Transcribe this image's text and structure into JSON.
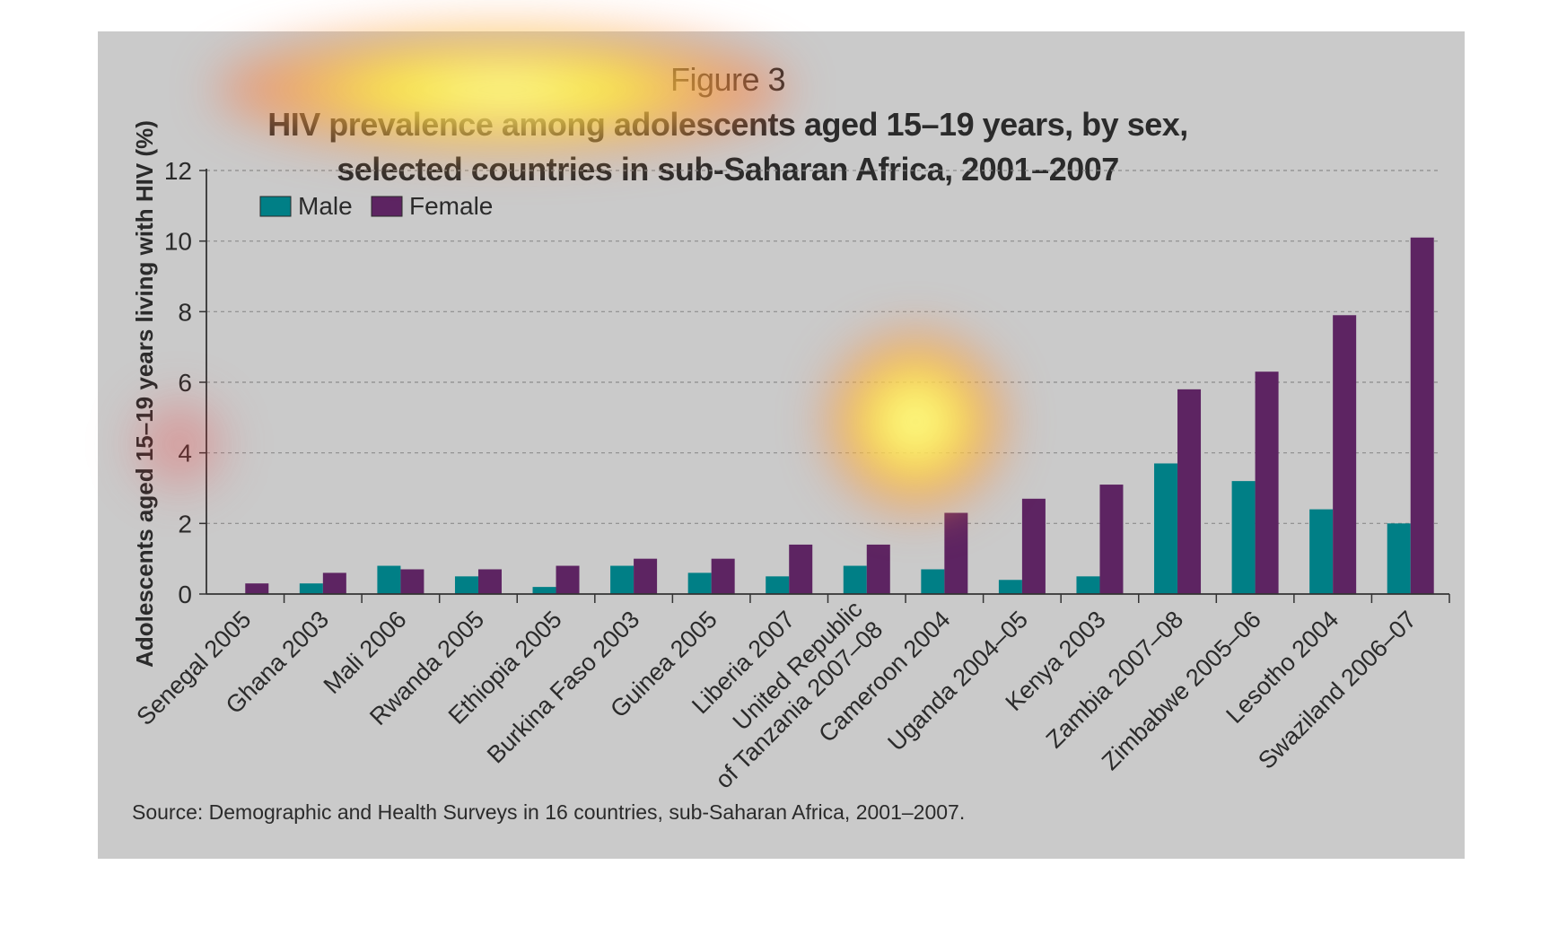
{
  "figure": {
    "label": "Figure 3",
    "title_line1_rest": "HIV prevalence among adolescents aged 15–19 years, by sex,",
    "title_line2": "selected countries in sub-Saharan Africa, 2001–2007",
    "source": "Source: Demographic and Health Surveys in 16 countries, sub-Saharan Africa, 2001–2007."
  },
  "chart_data": {
    "type": "bar",
    "title": "Figure 3 HIV prevalence among adolescents aged 15–19 years, by sex, selected countries in sub-Saharan Africa, 2001–2007",
    "xlabel": "",
    "ylabel": "Adolescents aged 15–19 years living with HIV (%)",
    "ylim": [
      0,
      12
    ],
    "yticks": [
      0,
      2,
      4,
      6,
      8,
      10,
      12
    ],
    "grid": true,
    "legend_position": "top-left",
    "categories": [
      [
        "Senegal 2005"
      ],
      [
        "Ghana 2003"
      ],
      [
        "Mali 2006"
      ],
      [
        "Rwanda 2005"
      ],
      [
        "Ethiopia 2005"
      ],
      [
        "Burkina Faso 2003"
      ],
      [
        "Guinea 2005"
      ],
      [
        "Liberia 2007"
      ],
      [
        "United Republic",
        "of Tanzania 2007–08"
      ],
      [
        "Cameroon 2004"
      ],
      [
        "Uganda 2004–05"
      ],
      [
        "Kenya 2003"
      ],
      [
        "Zambia 2007–08"
      ],
      [
        "Zimbabwe 2005–06"
      ],
      [
        "Lesotho 2004"
      ],
      [
        "Swaziland 2006–07"
      ]
    ],
    "series": [
      {
        "name": "Male",
        "color": "#007f86",
        "values": [
          0.0,
          0.3,
          0.8,
          0.5,
          0.2,
          0.8,
          0.6,
          0.5,
          0.8,
          0.7,
          0.4,
          0.5,
          3.7,
          3.2,
          2.4,
          2.0
        ]
      },
      {
        "name": "Female",
        "color": "#5d2462",
        "values": [
          0.3,
          0.6,
          0.7,
          0.7,
          0.8,
          1.0,
          1.0,
          1.4,
          1.4,
          2.3,
          2.7,
          3.1,
          5.8,
          6.3,
          7.9,
          10.1
        ]
      }
    ]
  }
}
